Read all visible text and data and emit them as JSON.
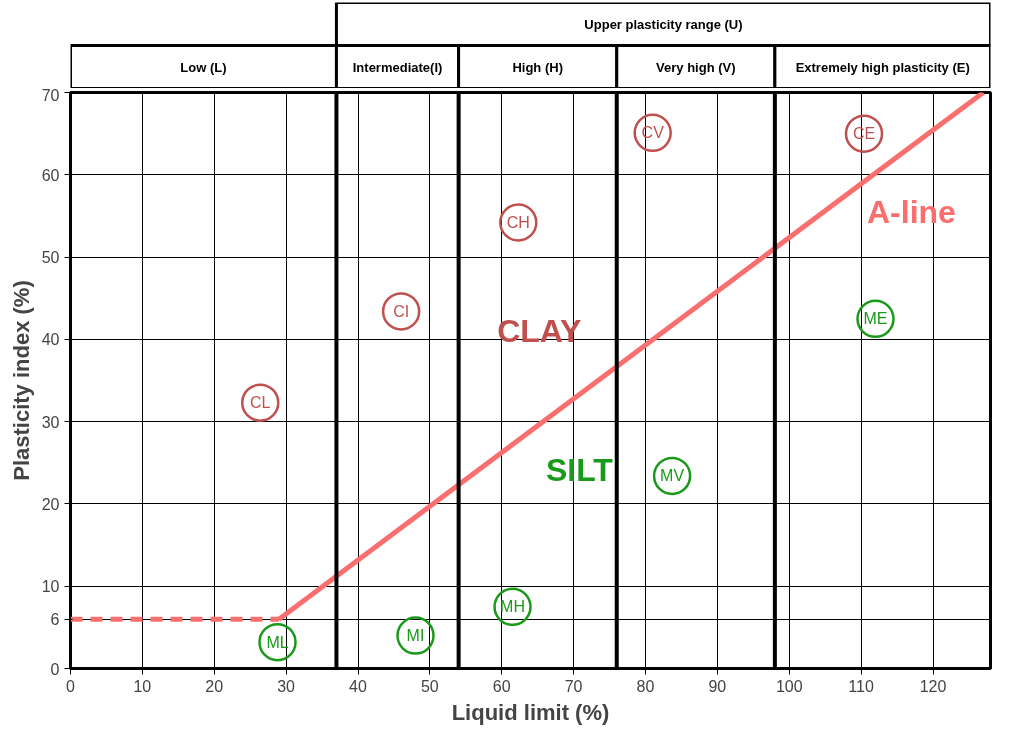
{
  "chart_data": {
    "type": "line",
    "xlabel": "Liquid limit (%)",
    "ylabel": "Plasticity index (%)",
    "xlim": [
      0,
      128
    ],
    "ylim": [
      0,
      70
    ],
    "xticks": [
      0,
      10,
      20,
      30,
      40,
      50,
      60,
      70,
      80,
      90,
      100,
      110,
      120
    ],
    "yticks": [
      0,
      6,
      10,
      20,
      30,
      40,
      50,
      60,
      70
    ],
    "grid": true,
    "series": [
      {
        "color": "#fa6e6e",
        "line_style": "dashed",
        "x": [
          0,
          29
        ],
        "values": [
          6,
          6
        ]
      },
      {
        "name": "A-line",
        "color": "#fa6e6e",
        "line_style": "solid",
        "x": [
          29,
          127
        ],
        "values": [
          6,
          70
        ]
      },
      {
        "name": "CLAY",
        "type": "scatter",
        "marker": "circle",
        "color": "#c0504d",
        "x": [
          26.4,
          46,
          62.3,
          81,
          110.4
        ],
        "values": [
          32.3,
          43.4,
          54.2,
          65.1,
          65
        ],
        "value_labels": [
          "CL",
          "CI",
          "CH",
          "CV",
          "CE"
        ]
      },
      {
        "name": "SILT",
        "type": "scatter",
        "marker": "circle",
        "color": "#1a9a1a",
        "x": [
          28.8,
          48,
          61.5,
          83.7,
          112
        ],
        "values": [
          3.2,
          4,
          7.5,
          23.4,
          42.5
        ],
        "value_labels": [
          "ML",
          "MI",
          "MH",
          "MV",
          "ME"
        ]
      }
    ],
    "ref_lines": [
      {
        "axis": "x",
        "value": 37
      },
      {
        "axis": "x",
        "value": 54
      },
      {
        "axis": "x",
        "value": 76
      },
      {
        "axis": "x",
        "value": 98
      }
    ],
    "annotations": [
      "Upper plasticity range (U)",
      "Low (L)",
      "Intermediate(I)",
      "High (H)",
      "Very high (V)",
      "Extremely high plasticity (E)"
    ]
  }
}
